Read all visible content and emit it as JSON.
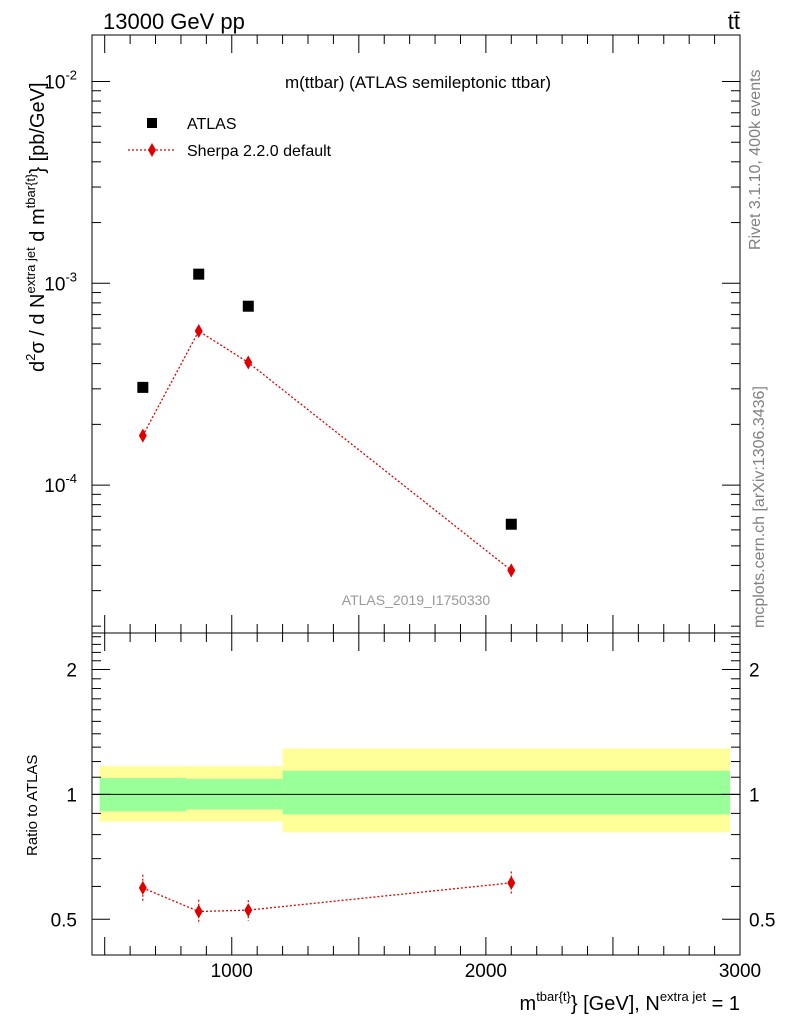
{
  "header": {
    "left": "13000 GeV pp",
    "right": "tt̄"
  },
  "side": {
    "rivet": "Rivet 3.1.10,  400k events",
    "mcplots": "mcplots.cern.ch [arXiv:1306.3436]"
  },
  "colors": {
    "data": "#000000",
    "mc": "#e00000",
    "band_inner": "#99ff99",
    "band_outer": "#ffff99",
    "watermark": "#999999",
    "side_text": "#808080"
  },
  "chart_data": [
    {
      "name": "main",
      "type": "scatter",
      "title": "m(ttbar) (ATLAS semileptonic ttbar)",
      "watermark": "ATLAS_2019_I1750330",
      "ylabel": {
        "d": "d",
        "sup2": "2",
        "sigma": "σ /  d N",
        "sup_extra": "extra jet",
        "mid": " d m",
        "sup_tbar": "tbar{t}",
        "tail": "} [pb/GeV]"
      },
      "yscale": "log",
      "ylim": [
        1.85e-05,
        0.017
      ],
      "xlim": [
        450,
        3000
      ],
      "yticks": [
        {
          "base": "10",
          "exp": "-2",
          "value": 0.01
        },
        {
          "base": "10",
          "exp": "-3",
          "value": 0.001
        },
        {
          "base": "10",
          "exp": "-4",
          "value": 0.0001
        }
      ],
      "legend_position": "top-left",
      "series": [
        {
          "name": "ATLAS",
          "marker": "square",
          "x": [
            650,
            870,
            1065,
            2100
          ],
          "y": [
            0.000305,
            0.00111,
            0.00077,
            6.4e-05
          ]
        },
        {
          "name": "Sherpa 2.2.0 default",
          "marker": "diamond",
          "line": "dotted",
          "x": [
            650,
            870,
            1065,
            2100
          ],
          "y": [
            0.000176,
            0.00058,
            0.000405,
            3.78e-05
          ],
          "yerr_rel": [
            0.07,
            0.05,
            0.05,
            0.07
          ]
        }
      ]
    },
    {
      "name": "ratio",
      "type": "scatter",
      "ylabel": "Ratio to ATLAS",
      "yscale": "log",
      "ylim": [
        0.41,
        2.45
      ],
      "xlim": [
        450,
        3000
      ],
      "xlabel": {
        "m": "m",
        "sup_tbar": "tbar{t}",
        "mid": "} [GeV], N",
        "sup_extra": "extra jet",
        "tail": " = 1"
      },
      "xticks": [
        {
          "label": "1000",
          "value": 1000
        },
        {
          "label": "2000",
          "value": 2000
        },
        {
          "label": "3000",
          "value": 3000
        }
      ],
      "yticks": [
        {
          "label": "2",
          "value": 2
        },
        {
          "label": "1",
          "value": 1
        },
        {
          "label": "0.5",
          "value": 0.5
        }
      ],
      "reference": 1,
      "bands": [
        {
          "x0": 450,
          "x1": 820,
          "inner": [
            0.91,
            1.095
          ],
          "outer": [
            0.86,
            1.17
          ]
        },
        {
          "x0": 820,
          "x1": 1200,
          "inner": [
            0.92,
            1.09
          ],
          "outer": [
            0.86,
            1.17
          ]
        },
        {
          "x0": 1200,
          "x1": 3000,
          "inner": [
            0.895,
            1.14
          ],
          "outer": [
            0.81,
            1.29
          ]
        }
      ],
      "series": [
        {
          "name": "Sherpa 2.2.0 default",
          "marker": "diamond",
          "line": "dotted",
          "x": [
            650,
            870,
            1065,
            2100
          ],
          "y": [
            0.595,
            0.522,
            0.526,
            0.612
          ],
          "yerr": [
            0.045,
            0.035,
            0.03,
            0.04
          ]
        }
      ]
    }
  ]
}
